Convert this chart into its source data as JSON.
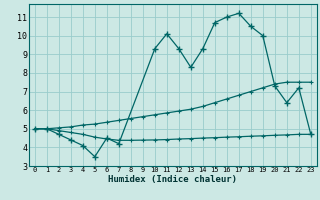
{
  "title": "",
  "xlabel": "Humidex (Indice chaleur)",
  "ylabel": "",
  "bg_color": "#cce8e4",
  "grid_color": "#99cccc",
  "line_color": "#006666",
  "xlim": [
    -0.5,
    23.5
  ],
  "ylim": [
    3.0,
    11.7
  ],
  "yticks": [
    3,
    4,
    5,
    6,
    7,
    8,
    9,
    10,
    11
  ],
  "xticks": [
    0,
    1,
    2,
    3,
    4,
    5,
    6,
    7,
    8,
    9,
    10,
    11,
    12,
    13,
    14,
    15,
    16,
    17,
    18,
    19,
    20,
    21,
    22,
    23
  ],
  "series1_x": [
    0,
    1,
    2,
    3,
    4,
    5,
    6,
    7,
    10,
    11,
    12,
    13,
    14,
    15,
    16,
    17,
    18,
    19,
    20,
    21,
    22,
    23
  ],
  "series1_y": [
    5.0,
    5.0,
    4.7,
    4.4,
    4.1,
    3.5,
    4.5,
    4.2,
    9.3,
    10.1,
    9.3,
    8.3,
    9.3,
    10.7,
    11.0,
    11.2,
    10.5,
    10.0,
    7.3,
    6.4,
    7.2,
    4.7
  ],
  "series2_x": [
    0,
    1,
    2,
    3,
    4,
    5,
    6,
    7,
    8,
    9,
    10,
    11,
    12,
    13,
    14,
    15,
    16,
    17,
    18,
    19,
    20,
    21,
    22,
    23
  ],
  "series2_y": [
    5.0,
    5.0,
    5.05,
    5.1,
    5.2,
    5.25,
    5.35,
    5.45,
    5.55,
    5.65,
    5.75,
    5.85,
    5.95,
    6.05,
    6.2,
    6.4,
    6.6,
    6.8,
    7.0,
    7.2,
    7.4,
    7.5,
    7.5,
    7.5
  ],
  "series3_x": [
    0,
    1,
    2,
    3,
    4,
    5,
    6,
    7,
    8,
    9,
    10,
    11,
    12,
    13,
    14,
    15,
    16,
    17,
    18,
    19,
    20,
    21,
    22,
    23
  ],
  "series3_y": [
    5.0,
    5.0,
    4.9,
    4.8,
    4.7,
    4.55,
    4.45,
    4.38,
    4.38,
    4.39,
    4.4,
    4.42,
    4.45,
    4.47,
    4.5,
    4.52,
    4.55,
    4.57,
    4.6,
    4.62,
    4.65,
    4.67,
    4.7,
    4.7
  ]
}
